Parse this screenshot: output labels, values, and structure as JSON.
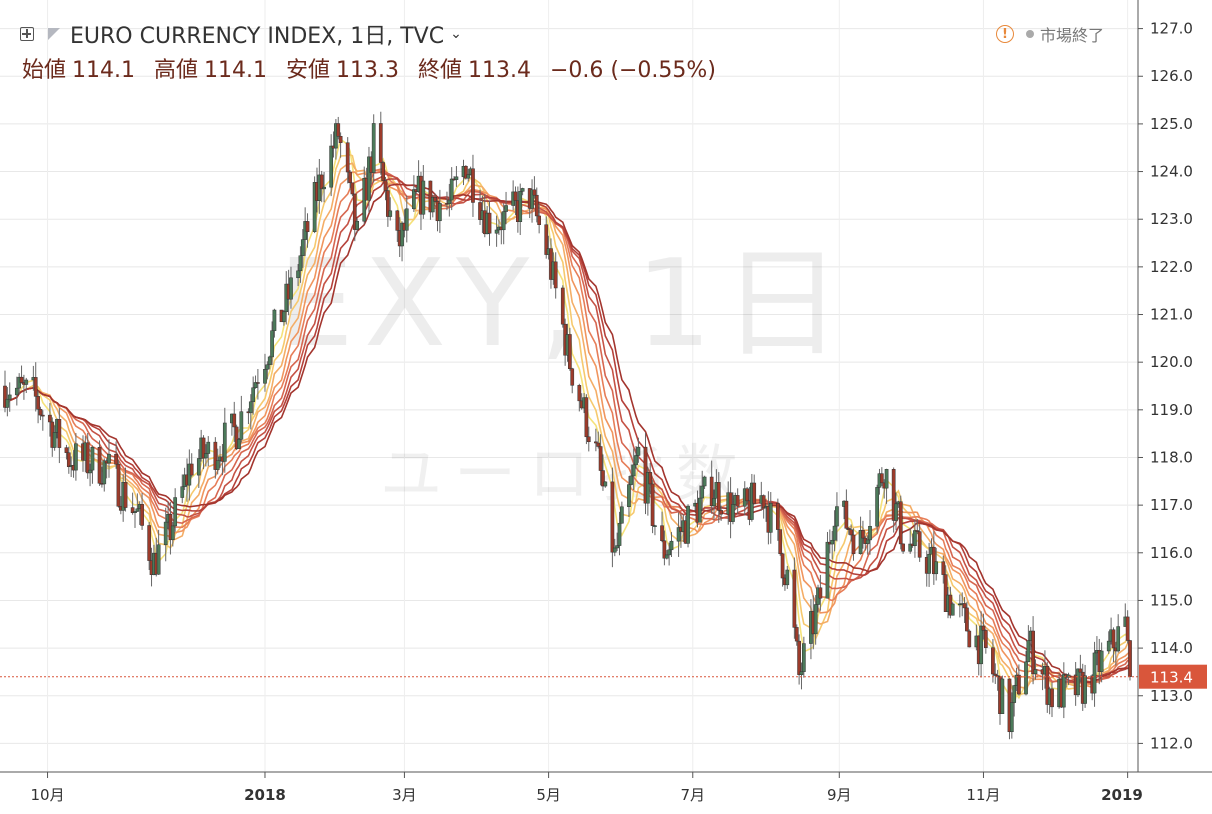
{
  "header": {
    "symbol_title": "EURO CURRENCY INDEX, 1日, TVC",
    "status_text": "市場終了",
    "ohlc": [
      {
        "label": "始値",
        "value": "114.1"
      },
      {
        "label": "高値",
        "value": "114.1"
      },
      {
        "label": "安値",
        "value": "113.3"
      },
      {
        "label": "終値",
        "value": "113.4"
      },
      {
        "label": "",
        "value": "−0.6 (−0.55%)"
      }
    ]
  },
  "watermark": {
    "main": "EXY, 1日",
    "sub": "ユーロ指数"
  },
  "colors": {
    "up": "#4c7a5a",
    "down": "#9c3b2b",
    "price_tag": "#d9563b",
    "ribbon": [
      "#f5e27a",
      "#f6c96e",
      "#f4ad66",
      "#f0955e",
      "#e67d58",
      "#d66650",
      "#c55245",
      "#b5413a",
      "#a3352e"
    ]
  },
  "chart_data": {
    "type": "candlestick",
    "y_axis": {
      "min": 111.4,
      "max": 127.6,
      "ticks": [
        "112.0",
        "113.0",
        "114.0",
        "115.0",
        "116.0",
        "117.0",
        "118.0",
        "119.0",
        "120.0",
        "121.0",
        "122.0",
        "123.0",
        "124.0",
        "125.0",
        "126.0",
        "127.0"
      ]
    },
    "x_axis": {
      "labels": [
        {
          "text": "10月",
          "date": "2017-10-01",
          "bold": false
        },
        {
          "text": "2018",
          "date": "2018-01-01",
          "bold": true
        },
        {
          "text": "3月",
          "date": "2018-03-01",
          "bold": false
        },
        {
          "text": "5月",
          "date": "2018-05-01",
          "bold": false
        },
        {
          "text": "7月",
          "date": "2018-07-01",
          "bold": false
        },
        {
          "text": "9月",
          "date": "2018-09-01",
          "bold": false
        },
        {
          "text": "11月",
          "date": "2018-11-01",
          "bold": false
        },
        {
          "text": "2019",
          "date": "2019-01-01",
          "bold": true
        }
      ]
    },
    "last_price": {
      "value": 113.4,
      "label": "113.4"
    },
    "date_range": [
      "2017-09-13",
      "2019-01-02"
    ],
    "path_anchors": [
      [
        "2017-09-13",
        119.5
      ],
      [
        "2017-09-25",
        119.3
      ],
      [
        "2017-10-10",
        118.0
      ],
      [
        "2017-10-26",
        117.8
      ],
      [
        "2017-11-08",
        116.8
      ],
      [
        "2017-11-15",
        115.8
      ],
      [
        "2017-11-22",
        116.5
      ],
      [
        "2017-12-01",
        117.9
      ],
      [
        "2017-12-12",
        118.2
      ],
      [
        "2017-12-20",
        118.6
      ],
      [
        "2017-12-29",
        119.8
      ],
      [
        "2018-01-12",
        121.5
      ],
      [
        "2018-01-25",
        123.9
      ],
      [
        "2018-02-01",
        124.8
      ],
      [
        "2018-02-09",
        122.6
      ],
      [
        "2018-02-16",
        124.6
      ],
      [
        "2018-02-26",
        122.4
      ],
      [
        "2018-03-07",
        123.5
      ],
      [
        "2018-03-20",
        123.3
      ],
      [
        "2018-03-27",
        124.2
      ],
      [
        "2018-04-05",
        123.0
      ],
      [
        "2018-04-13",
        123.0
      ],
      [
        "2018-04-23",
        123.5
      ],
      [
        "2018-05-01",
        122.2
      ],
      [
        "2018-05-10",
        120.0
      ],
      [
        "2018-05-22",
        117.9
      ],
      [
        "2018-05-29",
        115.9
      ],
      [
        "2018-06-08",
        118.1
      ],
      [
        "2018-06-18",
        116.0
      ],
      [
        "2018-06-28",
        116.6
      ],
      [
        "2018-07-09",
        117.4
      ],
      [
        "2018-07-20",
        116.8
      ],
      [
        "2018-07-31",
        117.2
      ],
      [
        "2018-08-10",
        115.5
      ],
      [
        "2018-08-15",
        113.4
      ],
      [
        "2018-08-24",
        115.1
      ],
      [
        "2018-08-30",
        117.0
      ],
      [
        "2018-09-10",
        116.2
      ],
      [
        "2018-09-20",
        117.8
      ],
      [
        "2018-09-28",
        116.3
      ],
      [
        "2018-10-10",
        115.8
      ],
      [
        "2018-10-19",
        114.9
      ],
      [
        "2018-11-02",
        113.9
      ],
      [
        "2018-11-12",
        112.5
      ],
      [
        "2018-11-20",
        114.1
      ],
      [
        "2018-11-30",
        113.0
      ],
      [
        "2018-12-14",
        113.2
      ],
      [
        "2018-12-31",
        114.5
      ],
      [
        "2019-01-02",
        113.4
      ]
    ]
  }
}
